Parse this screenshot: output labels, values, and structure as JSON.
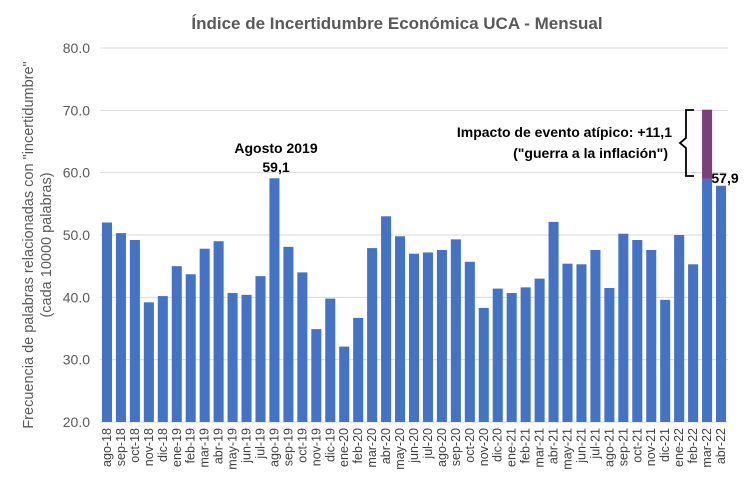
{
  "chart_data": {
    "type": "bar",
    "title": "Índice de Incertidumbre Económica UCA - Mensual",
    "ylabel_line1": "Frecuencia de palabras relacionadas con \"incertidumbre\"",
    "ylabel_line2": "(cada 10000 palabras)",
    "ylim": [
      20,
      80
    ],
    "yticks": [
      "20.0",
      "30.0",
      "40.0",
      "50.0",
      "60.0",
      "70.0",
      "80.0"
    ],
    "grid": true,
    "categories": [
      "ago-18",
      "sep-18",
      "oct-18",
      "nov-18",
      "dic-18",
      "ene-19",
      "feb-19",
      "mar-19",
      "abr-19",
      "may-19",
      "jun-19",
      "jul-19",
      "ago-19",
      "sep-19",
      "oct-19",
      "nov-19",
      "dic-19",
      "ene-20",
      "feb-20",
      "mar-20",
      "abr-20",
      "may-20",
      "jun-20",
      "jul-20",
      "ago-20",
      "sep-20",
      "oct-20",
      "nov-20",
      "dic-20",
      "ene-21",
      "feb-21",
      "mar-21",
      "abr-21",
      "may-21",
      "jun-21",
      "jul-21",
      "ago-21",
      "sep-21",
      "oct-21",
      "nov-21",
      "dic-21",
      "ene-22",
      "feb-22",
      "mar-22",
      "abr-22"
    ],
    "values": [
      52.0,
      50.3,
      49.2,
      39.2,
      40.2,
      45.0,
      43.7,
      47.8,
      49.0,
      40.7,
      40.4,
      43.4,
      59.1,
      48.1,
      44.0,
      34.9,
      39.8,
      32.1,
      36.7,
      47.9,
      53.0,
      49.8,
      47.0,
      47.2,
      47.6,
      49.3,
      45.7,
      38.3,
      41.4,
      40.7,
      41.6,
      43.0,
      52.1,
      45.4,
      45.3,
      47.6,
      41.5,
      50.2,
      49.2,
      47.6,
      39.6,
      50.0,
      45.3,
      59.0,
      57.9
    ],
    "atypical_extra": {
      "category": "mar-22",
      "value": 11.1
    },
    "colors": {
      "bar": "#4472c4",
      "atypical": "#7b3f7a",
      "grid": "#d9d9d9",
      "axis_text": "#595959"
    },
    "annotations": {
      "peak_label": "Agosto 2019",
      "peak_value": "59,1",
      "atypical_line1": "Impacto de evento atípico: +11,1",
      "atypical_line2": "(\"guerra a la inflación\")",
      "last_value": "57,9"
    }
  }
}
